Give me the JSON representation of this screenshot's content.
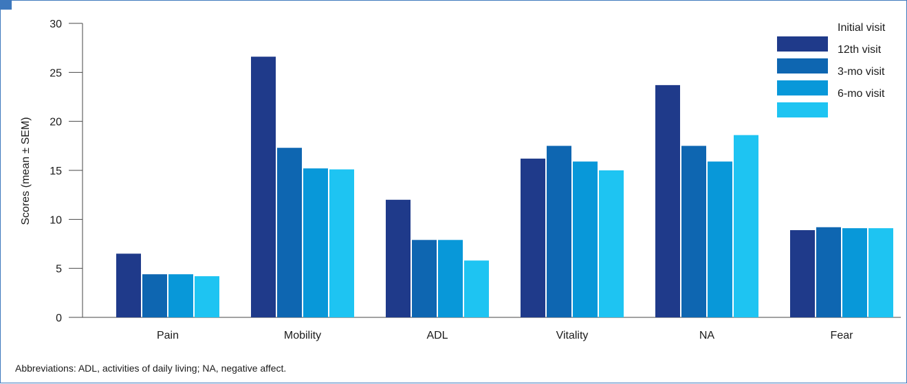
{
  "chart_data": {
    "type": "bar",
    "categories": [
      "Pain",
      "Mobility",
      "ADL",
      "Vitality",
      "NA",
      "Fear"
    ],
    "series": [
      {
        "name": "Initial visit",
        "color": "#1f3a8a",
        "values": [
          6.5,
          26.6,
          12.0,
          16.2,
          23.7,
          8.9
        ]
      },
      {
        "name": "12th visit",
        "color": "#0e66b1",
        "values": [
          4.4,
          17.3,
          7.9,
          17.5,
          17.5,
          9.2
        ]
      },
      {
        "name": "3-mo visit",
        "color": "#0898d9",
        "values": [
          4.4,
          15.2,
          7.9,
          15.9,
          15.9,
          9.1
        ]
      },
      {
        "name": "6-mo visit",
        "color": "#1ec4f2",
        "values": [
          4.2,
          15.1,
          5.8,
          15.0,
          18.6,
          9.1
        ]
      }
    ],
    "ylabel": "Scores (mean ± SEM)",
    "xlabel": "",
    "ylim": [
      0,
      30
    ],
    "yticks": [
      0,
      5,
      10,
      15,
      20,
      25,
      30
    ],
    "legend_position": "top-right",
    "grid": false
  },
  "footnote": "Abbreviations: ADL, activities of daily living; NA, negative affect."
}
